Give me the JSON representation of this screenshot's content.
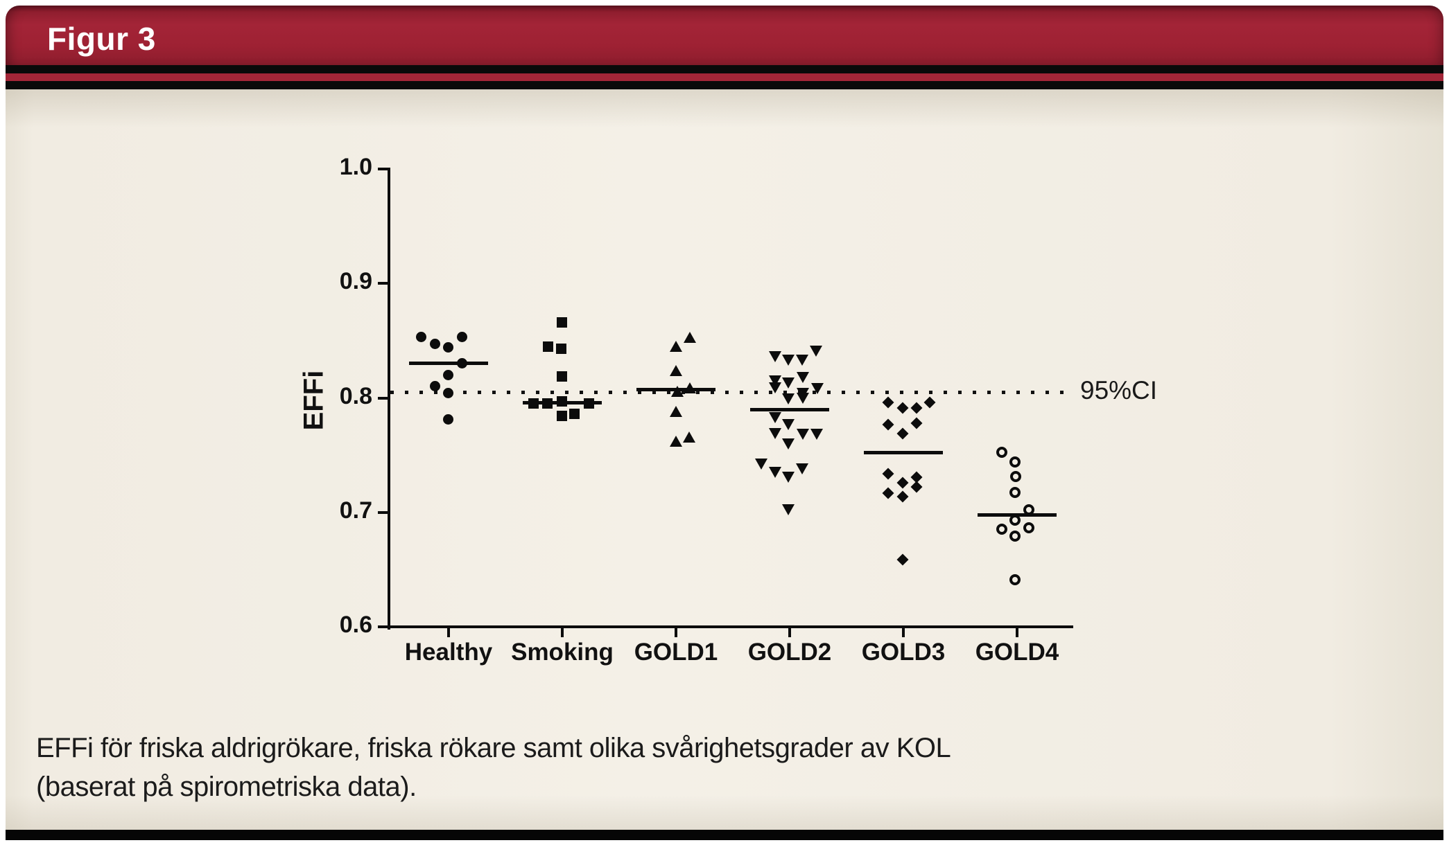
{
  "header": {
    "title": "Figur 3"
  },
  "caption": {
    "line1": "EFFi för friska aldrigrökare, friska rökare samt olika svårighetsgrader av KOL",
    "line2": "(baserat på spirometriska data)."
  },
  "colors": {
    "banner_red": "#9e2133",
    "stripe_red": "#a32638",
    "stripe_black": "#0a0a0a",
    "body_beige": "#f1ece2",
    "marker_black": "#0c0c0c"
  },
  "chart_data": {
    "type": "scatter",
    "title": "",
    "xlabel": "",
    "ylabel": "EFFi",
    "ylim": [
      0.6,
      1.0
    ],
    "yticks": [
      1.0,
      0.9,
      0.8,
      0.7,
      0.6
    ],
    "grid": false,
    "legend_position": "none",
    "reference_line": {
      "value": 0.805,
      "label": "95%CI",
      "style": "dotted"
    },
    "categories": [
      "Healthy",
      "Smoking",
      "GOLD1",
      "GOLD2",
      "GOLD3",
      "GOLD4"
    ],
    "series": [
      {
        "name": "Healthy",
        "marker": "circle",
        "median": 0.83,
        "points": [
          [
            -40,
            0.853
          ],
          [
            -20,
            0.847
          ],
          [
            -1,
            0.844
          ],
          [
            19,
            0.853
          ],
          [
            19,
            0.83
          ],
          [
            -1,
            0.82
          ],
          [
            -20,
            0.81
          ],
          [
            -1,
            0.804
          ],
          [
            -1,
            0.781
          ]
        ]
      },
      {
        "name": "Smoking",
        "marker": "square",
        "median": 0.796,
        "points": [
          [
            -1,
            0.866
          ],
          [
            -21,
            0.845
          ],
          [
            -2,
            0.843
          ],
          [
            -1,
            0.819
          ],
          [
            -42,
            0.795
          ],
          [
            -22,
            0.795
          ],
          [
            -1,
            0.797
          ],
          [
            38,
            0.795
          ],
          [
            -1,
            0.784
          ],
          [
            17,
            0.786
          ]
        ]
      },
      {
        "name": "GOLD1",
        "marker": "triangle-up",
        "median": 0.807,
        "points": [
          [
            20,
            0.853
          ],
          [
            0,
            0.845
          ],
          [
            0,
            0.824
          ],
          [
            20,
            0.809
          ],
          [
            2,
            0.806
          ],
          [
            0,
            0.788
          ],
          [
            19,
            0.766
          ],
          [
            0,
            0.762
          ]
        ]
      },
      {
        "name": "GOLD2",
        "marker": "triangle-down",
        "median": 0.79,
        "points": [
          [
            -21,
            0.836
          ],
          [
            -2,
            0.833
          ],
          [
            18,
            0.833
          ],
          [
            38,
            0.841
          ],
          [
            -21,
            0.815
          ],
          [
            -2,
            0.813
          ],
          [
            19,
            0.818
          ],
          [
            -21,
            0.809
          ],
          [
            40,
            0.808
          ],
          [
            19,
            0.804
          ],
          [
            -2,
            0.799
          ],
          [
            19,
            0.8
          ],
          [
            -21,
            0.783
          ],
          [
            -2,
            0.777
          ],
          [
            -21,
            0.769
          ],
          [
            19,
            0.768
          ],
          [
            39,
            0.768
          ],
          [
            -2,
            0.76
          ],
          [
            -41,
            0.742
          ],
          [
            -21,
            0.735
          ],
          [
            -2,
            0.731
          ],
          [
            18,
            0.738
          ],
          [
            -2,
            0.702
          ]
        ]
      },
      {
        "name": "GOLD3",
        "marker": "diamond",
        "median": 0.752,
        "points": [
          [
            -22,
            0.796
          ],
          [
            -1,
            0.791
          ],
          [
            19,
            0.791
          ],
          [
            38,
            0.796
          ],
          [
            -22,
            0.777
          ],
          [
            19,
            0.778
          ],
          [
            -1,
            0.769
          ],
          [
            -22,
            0.734
          ],
          [
            19,
            0.731
          ],
          [
            -1,
            0.726
          ],
          [
            19,
            0.722
          ],
          [
            -22,
            0.717
          ],
          [
            -1,
            0.714
          ],
          [
            -1,
            0.659
          ]
        ]
      },
      {
        "name": "GOLD4",
        "marker": "circle-open",
        "median": 0.698,
        "points": [
          [
            -22,
            0.752
          ],
          [
            -3,
            0.744
          ],
          [
            -2,
            0.731
          ],
          [
            -3,
            0.717
          ],
          [
            17,
            0.702
          ],
          [
            -3,
            0.693
          ],
          [
            -22,
            0.685
          ],
          [
            17,
            0.686
          ],
          [
            -3,
            0.679
          ],
          [
            -3,
            0.641
          ]
        ]
      }
    ]
  }
}
